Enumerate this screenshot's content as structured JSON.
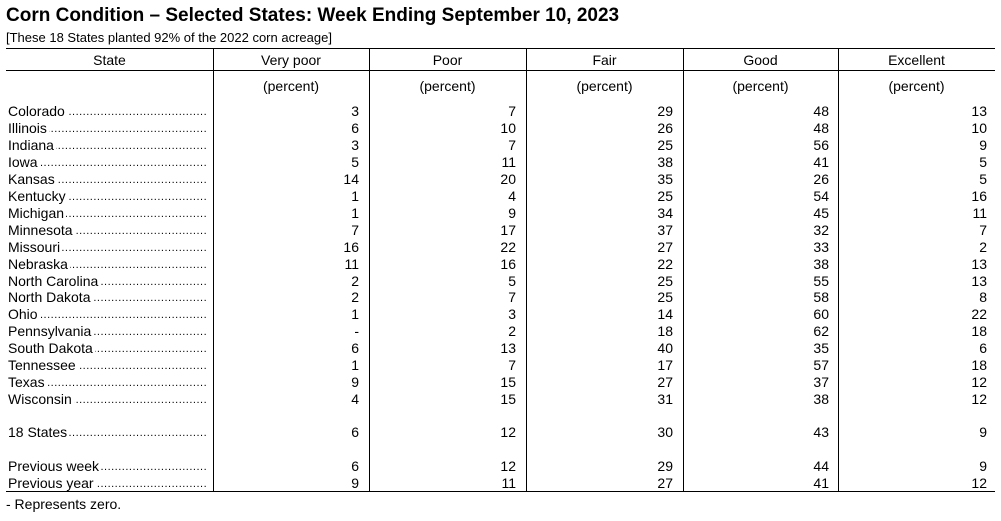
{
  "title": "Corn Condition – Selected States: Week Ending September 10, 2023",
  "subtitle": "[These 18 States planted 92% of the 2022 corn acreage]",
  "columns": [
    "State",
    "Very poor",
    "Poor",
    "Fair",
    "Good",
    "Excellent"
  ],
  "unit_label": "(percent)",
  "rows": [
    {
      "state": "Colorado",
      "v": [
        "3",
        "7",
        "29",
        "48",
        "13"
      ]
    },
    {
      "state": "Illinois",
      "v": [
        "6",
        "10",
        "26",
        "48",
        "10"
      ]
    },
    {
      "state": "Indiana",
      "v": [
        "3",
        "7",
        "25",
        "56",
        "9"
      ]
    },
    {
      "state": "Iowa",
      "v": [
        "5",
        "11",
        "38",
        "41",
        "5"
      ]
    },
    {
      "state": "Kansas",
      "v": [
        "14",
        "20",
        "35",
        "26",
        "5"
      ]
    },
    {
      "state": "Kentucky",
      "v": [
        "1",
        "4",
        "25",
        "54",
        "16"
      ]
    },
    {
      "state": "Michigan",
      "v": [
        "1",
        "9",
        "34",
        "45",
        "11"
      ]
    },
    {
      "state": "Minnesota",
      "v": [
        "7",
        "17",
        "37",
        "32",
        "7"
      ]
    },
    {
      "state": "Missouri",
      "v": [
        "16",
        "22",
        "27",
        "33",
        "2"
      ]
    },
    {
      "state": "Nebraska",
      "v": [
        "11",
        "16",
        "22",
        "38",
        "13"
      ]
    },
    {
      "state": "North Carolina",
      "v": [
        "2",
        "5",
        "25",
        "55",
        "13"
      ]
    },
    {
      "state": "North Dakota",
      "v": [
        "2",
        "7",
        "25",
        "58",
        "8"
      ]
    },
    {
      "state": "Ohio",
      "v": [
        "1",
        "3",
        "14",
        "60",
        "22"
      ]
    },
    {
      "state": "Pennsylvania",
      "v": [
        "-",
        "2",
        "18",
        "62",
        "18"
      ]
    },
    {
      "state": "South Dakota",
      "v": [
        "6",
        "13",
        "40",
        "35",
        "6"
      ]
    },
    {
      "state": "Tennessee",
      "v": [
        "1",
        "7",
        "17",
        "57",
        "18"
      ]
    },
    {
      "state": "Texas",
      "v": [
        "9",
        "15",
        "27",
        "37",
        "12"
      ]
    },
    {
      "state": "Wisconsin",
      "v": [
        "4",
        "15",
        "31",
        "38",
        "12"
      ]
    }
  ],
  "total": {
    "state": "18 States",
    "v": [
      "6",
      "12",
      "30",
      "43",
      "9"
    ]
  },
  "previous_week": {
    "state": "Previous week",
    "v": [
      "6",
      "12",
      "29",
      "44",
      "9"
    ]
  },
  "previous_year": {
    "state": "Previous year",
    "v": [
      "9",
      "11",
      "27",
      "41",
      "12"
    ]
  },
  "footnote": "- Represents zero."
}
